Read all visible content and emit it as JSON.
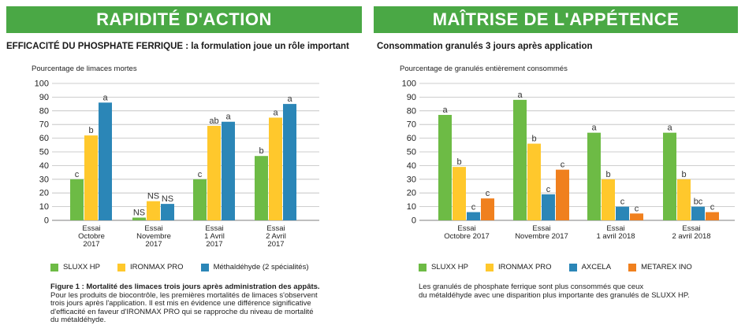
{
  "left": {
    "banner": "RAPIDITÉ D'ACTION",
    "subtitle": "EFFICACITÉ DU PHOSPHATE FERRIQUE : la formulation joue un rôle important",
    "ylabel": "Pourcentage de limaces mortes",
    "legend": [
      {
        "label": "SLUXX HP",
        "color": "#6dbb45"
      },
      {
        "label": "IRONMAX PRO",
        "color": "#ffc82c"
      },
      {
        "label": "Méthaldéhyde (2 spécialités)",
        "color": "#2b86b7"
      }
    ],
    "caption_title": "Figure 1 : Mortalité des limaces trois jours après administration des appâts.",
    "caption_lines": [
      "Pour les produits de biocontrôle, les premières mortalités de limaces s'observent",
      "trois jours après l'application. Il est mis en évidence une différence significative",
      "d'efficacité en faveur d'IRONMAX PRO qui se rapproche du niveau de mortalité",
      "du métaldéhyde."
    ]
  },
  "right": {
    "banner": "MAÎTRISE DE L'APPÉTENCE",
    "subtitle": "Consommation granulés 3 jours après application",
    "ylabel": "Pourcentage de granulés entièrement consommés",
    "legend": [
      {
        "label": "SLUXX HP",
        "color": "#6dbb45"
      },
      {
        "label": "IRONMAX PRO",
        "color": "#ffc82c"
      },
      {
        "label": "AXCELA",
        "color": "#2b86b7"
      },
      {
        "label": "METAREX INO",
        "color": "#f0801e"
      }
    ],
    "caption_lines": [
      "Les granulés de phosphate ferrique sont plus consommés que ceux",
      "du métaldéhyde avec une disparition plus importante des granulés de SLUXX HP."
    ]
  },
  "chart_data": [
    {
      "type": "bar",
      "title": "",
      "ylabel": "Pourcentage de limaces mortes",
      "ylim": [
        0,
        100
      ],
      "yticks": [
        0,
        10,
        20,
        30,
        40,
        50,
        60,
        70,
        80,
        90,
        100
      ],
      "grid": true,
      "categories": [
        [
          "Essai",
          "Octobre",
          "2017"
        ],
        [
          "Essai",
          "Novembre",
          "2017"
        ],
        [
          "Essai",
          "1 Avril",
          "2017"
        ],
        [
          "Essai",
          "2 Avril",
          "2017"
        ]
      ],
      "series": [
        {
          "name": "SLUXX HP",
          "color": "#6dbb45",
          "values": [
            30,
            2,
            30,
            47
          ],
          "labels": [
            "c",
            "NS",
            "c",
            "b"
          ]
        },
        {
          "name": "IRONMAX PRO",
          "color": "#ffc82c",
          "values": [
            62,
            14,
            69,
            75
          ],
          "labels": [
            "b",
            "NS",
            "ab",
            "a"
          ]
        },
        {
          "name": "Méthaldéhyde (2 spécialités)",
          "color": "#2b86b7",
          "values": [
            86,
            12,
            72,
            85
          ],
          "labels": [
            "a",
            "NS",
            "a",
            "a"
          ]
        }
      ]
    },
    {
      "type": "bar",
      "title": "",
      "ylabel": "Pourcentage de granulés entièrement consommés",
      "ylim": [
        0,
        100
      ],
      "yticks": [
        0,
        10,
        20,
        30,
        40,
        50,
        60,
        70,
        80,
        90,
        100
      ],
      "grid": true,
      "categories": [
        [
          "Essai",
          "Octobre 2017"
        ],
        [
          "Essai",
          "Novembre 2017"
        ],
        [
          "Essai",
          "1 avril 2018"
        ],
        [
          "Essai",
          "2 avril 2018"
        ]
      ],
      "series": [
        {
          "name": "SLUXX HP",
          "color": "#6dbb45",
          "values": [
            77,
            88,
            64,
            64
          ],
          "labels": [
            "a",
            "a",
            "a",
            "a"
          ]
        },
        {
          "name": "IRONMAX PRO",
          "color": "#ffc82c",
          "values": [
            39,
            56,
            30,
            30
          ],
          "labels": [
            "b",
            "b",
            "b",
            "b"
          ]
        },
        {
          "name": "AXCELA",
          "color": "#2b86b7",
          "values": [
            6,
            19,
            10,
            10
          ],
          "labels": [
            "c",
            "c",
            "c",
            "bc"
          ]
        },
        {
          "name": "METAREX INO",
          "color": "#f0801e",
          "values": [
            16,
            37,
            5,
            6
          ],
          "labels": [
            "c",
            "c",
            "c",
            "c"
          ]
        }
      ]
    }
  ]
}
